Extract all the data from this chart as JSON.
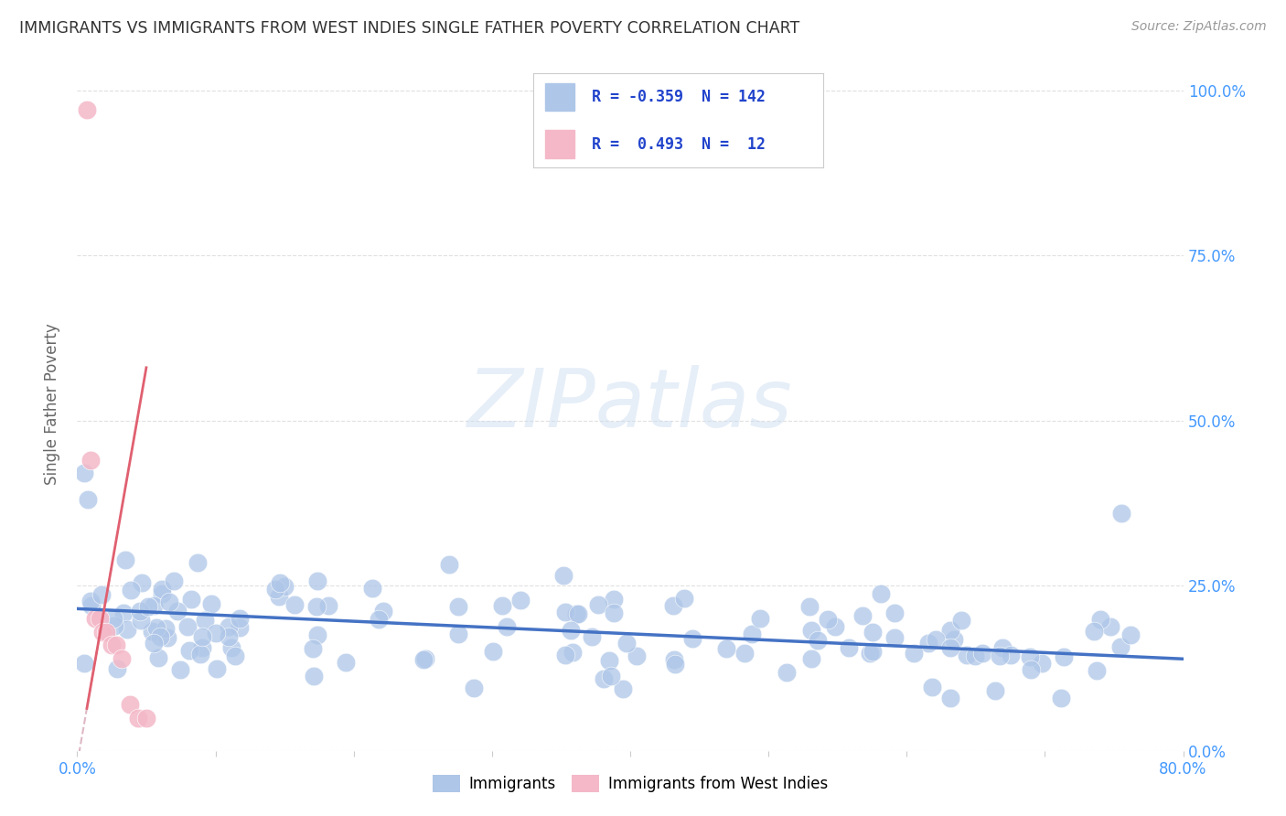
{
  "title": "IMMIGRANTS VS IMMIGRANTS FROM WEST INDIES SINGLE FATHER POVERTY CORRELATION CHART",
  "source": "Source: ZipAtlas.com",
  "ylabel": "Single Father Poverty",
  "watermark": "ZIPatlas",
  "blue_scatter_color": "#aec6e8",
  "pink_scatter_color": "#f4b8c8",
  "blue_line_color": "#4472c4",
  "pink_line_color": "#e06070",
  "pink_dash_color": "#d4a0b0",
  "grid_color": "#dddddd",
  "background_color": "#ffffff",
  "title_color": "#333333",
  "axis_color": "#4499ff",
  "xmin": 0.0,
  "xmax": 0.8,
  "ymin": 0.0,
  "ymax": 1.05,
  "blue_intercept": 0.215,
  "blue_slope": -0.095,
  "pink_intercept": -0.02,
  "pink_slope": 12.0,
  "legend_blue_text": "R = -0.359  N = 142",
  "legend_pink_text": "R =  0.493  N =  12",
  "legend_blue_color": "#aec6e8",
  "legend_pink_color": "#f4b8c8",
  "legend_text_color": "#2244cc"
}
